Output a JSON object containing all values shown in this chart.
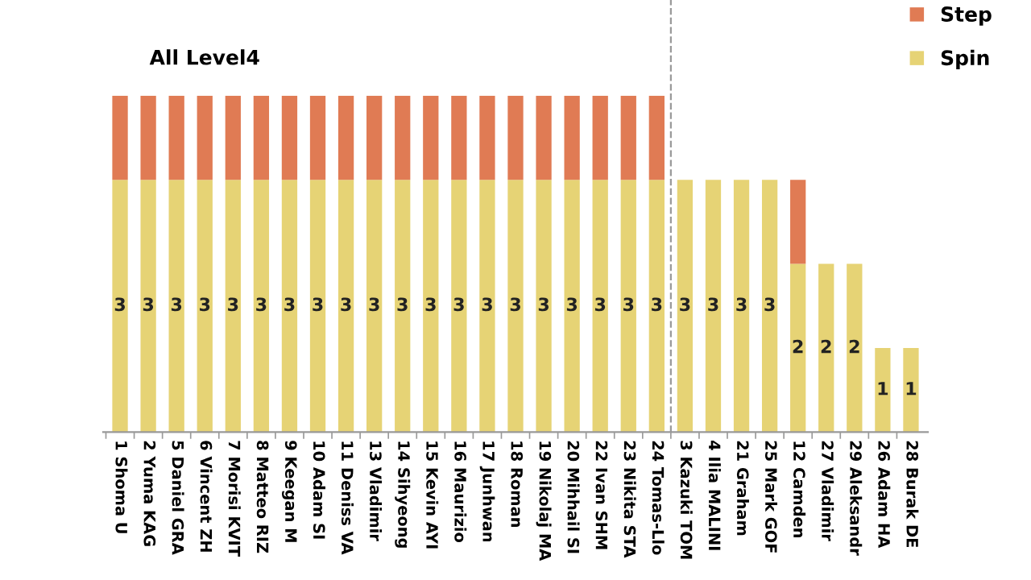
{
  "chart_data": {
    "type": "bar",
    "stacked": true,
    "categories": [
      "1 Shoma U",
      "2 Yuma KAG",
      "5 Daniel GRA",
      "6 Vincent ZH",
      "7 Morisi KVIT",
      "8 Matteo RIZ",
      "9 Keegan M",
      "10 Adam SI",
      "11 Deniss VA",
      "13 Vladimir",
      "14 Sihyeong",
      "15 Kevin AYI",
      "16 Maurizio",
      "17 Junhwan",
      "18 Roman",
      "19 Nikolaj MA",
      "20 Mihhail SI",
      "22 Ivan SHM",
      "23 Nikita STA",
      "24 Tomas-Llo",
      "3 Kazuki TOM",
      "4 Ilia MALINI",
      "21 Graham",
      "25 Mark GOF",
      "12 Camden",
      "27 Vladimir",
      "29 Aleksandr",
      "26 Adam HA",
      "28 Burak DE"
    ],
    "series": [
      {
        "name": "Spin",
        "color": "#e6d375",
        "values": [
          3,
          3,
          3,
          3,
          3,
          3,
          3,
          3,
          3,
          3,
          3,
          3,
          3,
          3,
          3,
          3,
          3,
          3,
          3,
          3,
          3,
          3,
          3,
          3,
          2,
          2,
          2,
          1,
          1
        ],
        "value_labels": [
          "3",
          "3",
          "3",
          "3",
          "3",
          "3",
          "3",
          "3",
          "3",
          "3",
          "3",
          "3",
          "3",
          "3",
          "3",
          "3",
          "3",
          "3",
          "3",
          "3",
          "3",
          "3",
          "3",
          "3",
          "2",
          "2",
          "2",
          "1",
          "1"
        ]
      },
      {
        "name": "Step",
        "color": "#e07b54",
        "values": [
          1,
          1,
          1,
          1,
          1,
          1,
          1,
          1,
          1,
          1,
          1,
          1,
          1,
          1,
          1,
          1,
          1,
          1,
          1,
          1,
          0,
          0,
          0,
          0,
          1,
          0,
          0,
          0,
          0
        ]
      }
    ],
    "ylim": [
      0,
      4
    ],
    "tick_labels": "x",
    "annotations": [
      {
        "text": "All Level4",
        "x": "6 Vincent ZH",
        "y": 4
      }
    ],
    "legend": "top right"
  }
}
